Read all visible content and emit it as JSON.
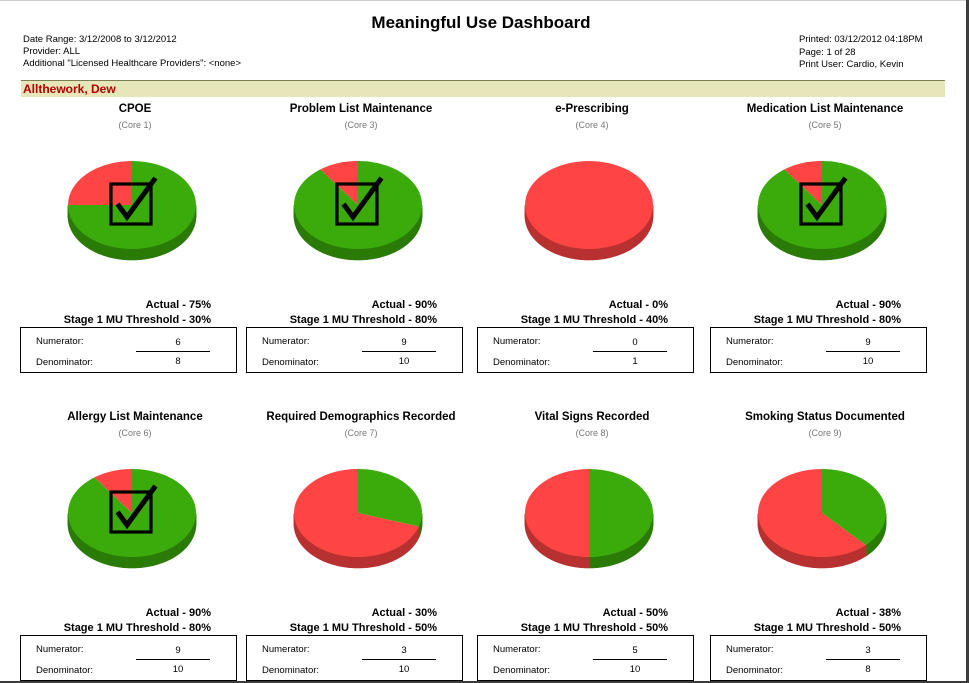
{
  "report": {
    "title": "Meaningful Use Dashboard",
    "date_range": "Date Range: 3/12/2008 to 3/12/2012",
    "provider": "Provider: ALL",
    "additional": "Additional \"Licensed Healthcare Providers\": <none>",
    "printed": "Printed:  03/12/2012 04:18PM",
    "page": "Page: 1 of 28",
    "print_user": "Print User: Cardio, Kevin"
  },
  "provider_name": "Allthework, Dew",
  "labels": {
    "numerator": "Numerator:",
    "denominator": "Denominator:"
  },
  "colors": {
    "met": "#3aab0a",
    "not_met": "#ff4444",
    "band": "#e6e6b8",
    "provider_name": "#b20000"
  },
  "measures": [
    {
      "title": "CPOE",
      "core": "(Core 1)",
      "actual": "Actual - 75%",
      "threshold": "Stage 1 MU Threshold - 30%",
      "numerator": "6",
      "denominator": "8",
      "percent": 75,
      "passed": true
    },
    {
      "title": "Problem List Maintenance",
      "core": "(Core 3)",
      "actual": "Actual - 90%",
      "threshold": "Stage 1 MU Threshold - 80%",
      "numerator": "9",
      "denominator": "10",
      "percent": 90,
      "passed": true
    },
    {
      "title": "e-Prescribing",
      "core": "(Core 4)",
      "actual": "Actual - 0%",
      "threshold": "Stage 1 MU Threshold - 40%",
      "numerator": "0",
      "denominator": "1",
      "percent": 0,
      "passed": false
    },
    {
      "title": "Medication List Maintenance",
      "core": "(Core 5)",
      "actual": "Actual - 90%",
      "threshold": "Stage 1 MU Threshold - 80%",
      "numerator": "9",
      "denominator": "10",
      "percent": 90,
      "passed": true
    },
    {
      "title": "Allergy List Maintenance",
      "core": "(Core 6)",
      "actual": "Actual - 90%",
      "threshold": "Stage 1 MU Threshold - 80%",
      "numerator": "9",
      "denominator": "10",
      "percent": 90,
      "passed": true
    },
    {
      "title": "Required Demographics Recorded",
      "core": "(Core 7)",
      "actual": "Actual - 30%",
      "threshold": "Stage 1 MU Threshold - 50%",
      "numerator": "3",
      "denominator": "10",
      "percent": 30,
      "passed": false
    },
    {
      "title": "Vital Signs Recorded",
      "core": "(Core 8)",
      "actual": "Actual - 50%",
      "threshold": "Stage 1 MU Threshold - 50%",
      "numerator": "5",
      "denominator": "10",
      "percent": 50,
      "passed": false
    },
    {
      "title": "Smoking Status Documented",
      "core": "(Core 9)",
      "actual": "Actual - 38%",
      "threshold": "Stage 1 MU Threshold - 50%",
      "numerator": "3",
      "denominator": "8",
      "percent": 38,
      "passed": false
    }
  ]
}
